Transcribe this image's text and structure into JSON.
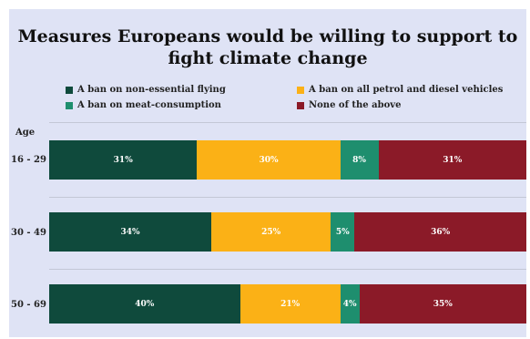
{
  "chart_data": {
    "type": "bar",
    "orientation": "horizontal",
    "stacked": true,
    "normalized": "percent",
    "title": "Measures Europeans would be willing to support to fight climate change",
    "ylabel": "Age",
    "categories": [
      "16 - 29",
      "30 - 49",
      "50 - 69"
    ],
    "series": [
      {
        "name": "A ban on non-essential flying",
        "color": "#0f4a3c",
        "values": [
          31,
          34,
          40
        ]
      },
      {
        "name": "A ban on all petrol and diesel vehicles",
        "color": "#fbb116",
        "values": [
          30,
          25,
          21
        ]
      },
      {
        "name": "A ban on meat-consumption",
        "color": "#1e8e6e",
        "values": [
          8,
          5,
          4
        ]
      },
      {
        "name": "None of the above",
        "color": "#8b1a28",
        "values": [
          31,
          36,
          35
        ]
      }
    ],
    "value_suffix": "%",
    "legend_position": "top",
    "grid": true
  }
}
